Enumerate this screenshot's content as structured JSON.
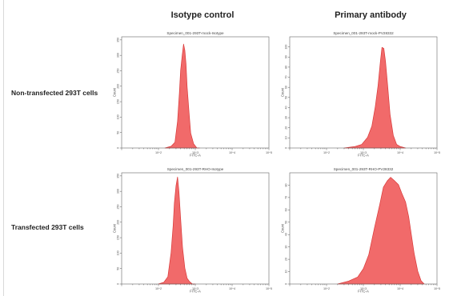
{
  "headers": {
    "col1": "Isotype control",
    "col2": "Primary antibody"
  },
  "rows": {
    "row1": "Non-transfected 293T cells",
    "row2": "Transfected 293T cells"
  },
  "fill_color": "#f16a6a",
  "stroke_color": "#d93a3a",
  "chart_data": [
    {
      "type": "area",
      "title": "Specimen_001-293T-mock-Isotype",
      "xlabel": "FITC-A",
      "ylabel": "Count",
      "xscale": "log",
      "xlim": [
        10,
        100000
      ],
      "xticks": [
        "10^2",
        "10^3",
        "10^4",
        "10^5"
      ],
      "ylim": [
        0,
        360
      ],
      "yticks": [
        "0",
        "50",
        "100",
        "150",
        "200",
        "250",
        "300",
        "350"
      ],
      "x": [
        150,
        220,
        280,
        330,
        370,
        400,
        440,
        480,
        520,
        560,
        600,
        680,
        750,
        900,
        1100,
        1300
      ],
      "y": [
        0,
        4,
        20,
        85,
        180,
        250,
        300,
        335,
        318,
        270,
        200,
        110,
        50,
        12,
        2,
        0
      ]
    },
    {
      "type": "area",
      "title": "Specimen_001-293T-mock-PV28332",
      "xlabel": "FITC-A",
      "ylabel": "Count",
      "xscale": "log",
      "xlim": [
        10,
        100000
      ],
      "xticks": [
        "10^2",
        "10^3",
        "10^4",
        "10^5"
      ],
      "ylim": [
        0,
        110
      ],
      "yticks": [
        "0",
        "10",
        "20",
        "30",
        "40",
        "50",
        "60",
        "70",
        "80",
        "90",
        "100"
      ],
      "x": [
        300,
        600,
        900,
        1300,
        1700,
        2100,
        2500,
        2900,
        3200,
        3600,
        4000,
        4600,
        5300,
        6500,
        8000,
        10000,
        14000
      ],
      "y": [
        0,
        1,
        4,
        10,
        22,
        40,
        62,
        85,
        100,
        98,
        86,
        60,
        34,
        12,
        4,
        1,
        0
      ]
    },
    {
      "type": "area",
      "title": "Specimen_001-293T-RHO-Isotype",
      "xlabel": "FITC-A",
      "ylabel": "Count",
      "xscale": "log",
      "xlim": [
        10,
        100000
      ],
      "xticks": [
        "10^2",
        "10^3",
        "10^4",
        "10^5"
      ],
      "ylim": [
        0,
        360
      ],
      "yticks": [
        "0",
        "50",
        "100",
        "150",
        "200",
        "250",
        "300",
        "350"
      ],
      "x": [
        100,
        140,
        180,
        220,
        250,
        270,
        300,
        330,
        360,
        400,
        450,
        520,
        600,
        700,
        850,
        1000
      ],
      "y": [
        0,
        4,
        25,
        100,
        190,
        260,
        320,
        345,
        300,
        210,
        120,
        50,
        20,
        6,
        1,
        0
      ]
    },
    {
      "type": "area",
      "title": "Specimen_001-293T-RHO-PV28332",
      "xlabel": "FITC-A",
      "ylabel": "Count",
      "xscale": "log",
      "xlim": [
        10,
        100000
      ],
      "xticks": [
        "10^2",
        "10^3",
        "10^4",
        "10^5"
      ],
      "ylim": [
        0,
        90
      ],
      "yticks": [
        "0",
        "10",
        "20",
        "30",
        "40",
        "50",
        "60",
        "70",
        "80"
      ],
      "x": [
        200,
        400,
        700,
        1000,
        1400,
        2000,
        2800,
        3500,
        4500,
        5500,
        7000,
        9000,
        11000,
        14000,
        17000,
        20000,
        24000,
        30000,
        37000,
        45000
      ],
      "y": [
        0,
        2,
        6,
        12,
        24,
        45,
        65,
        78,
        84,
        86,
        84,
        80,
        74,
        66,
        55,
        40,
        25,
        10,
        3,
        0
      ]
    }
  ]
}
